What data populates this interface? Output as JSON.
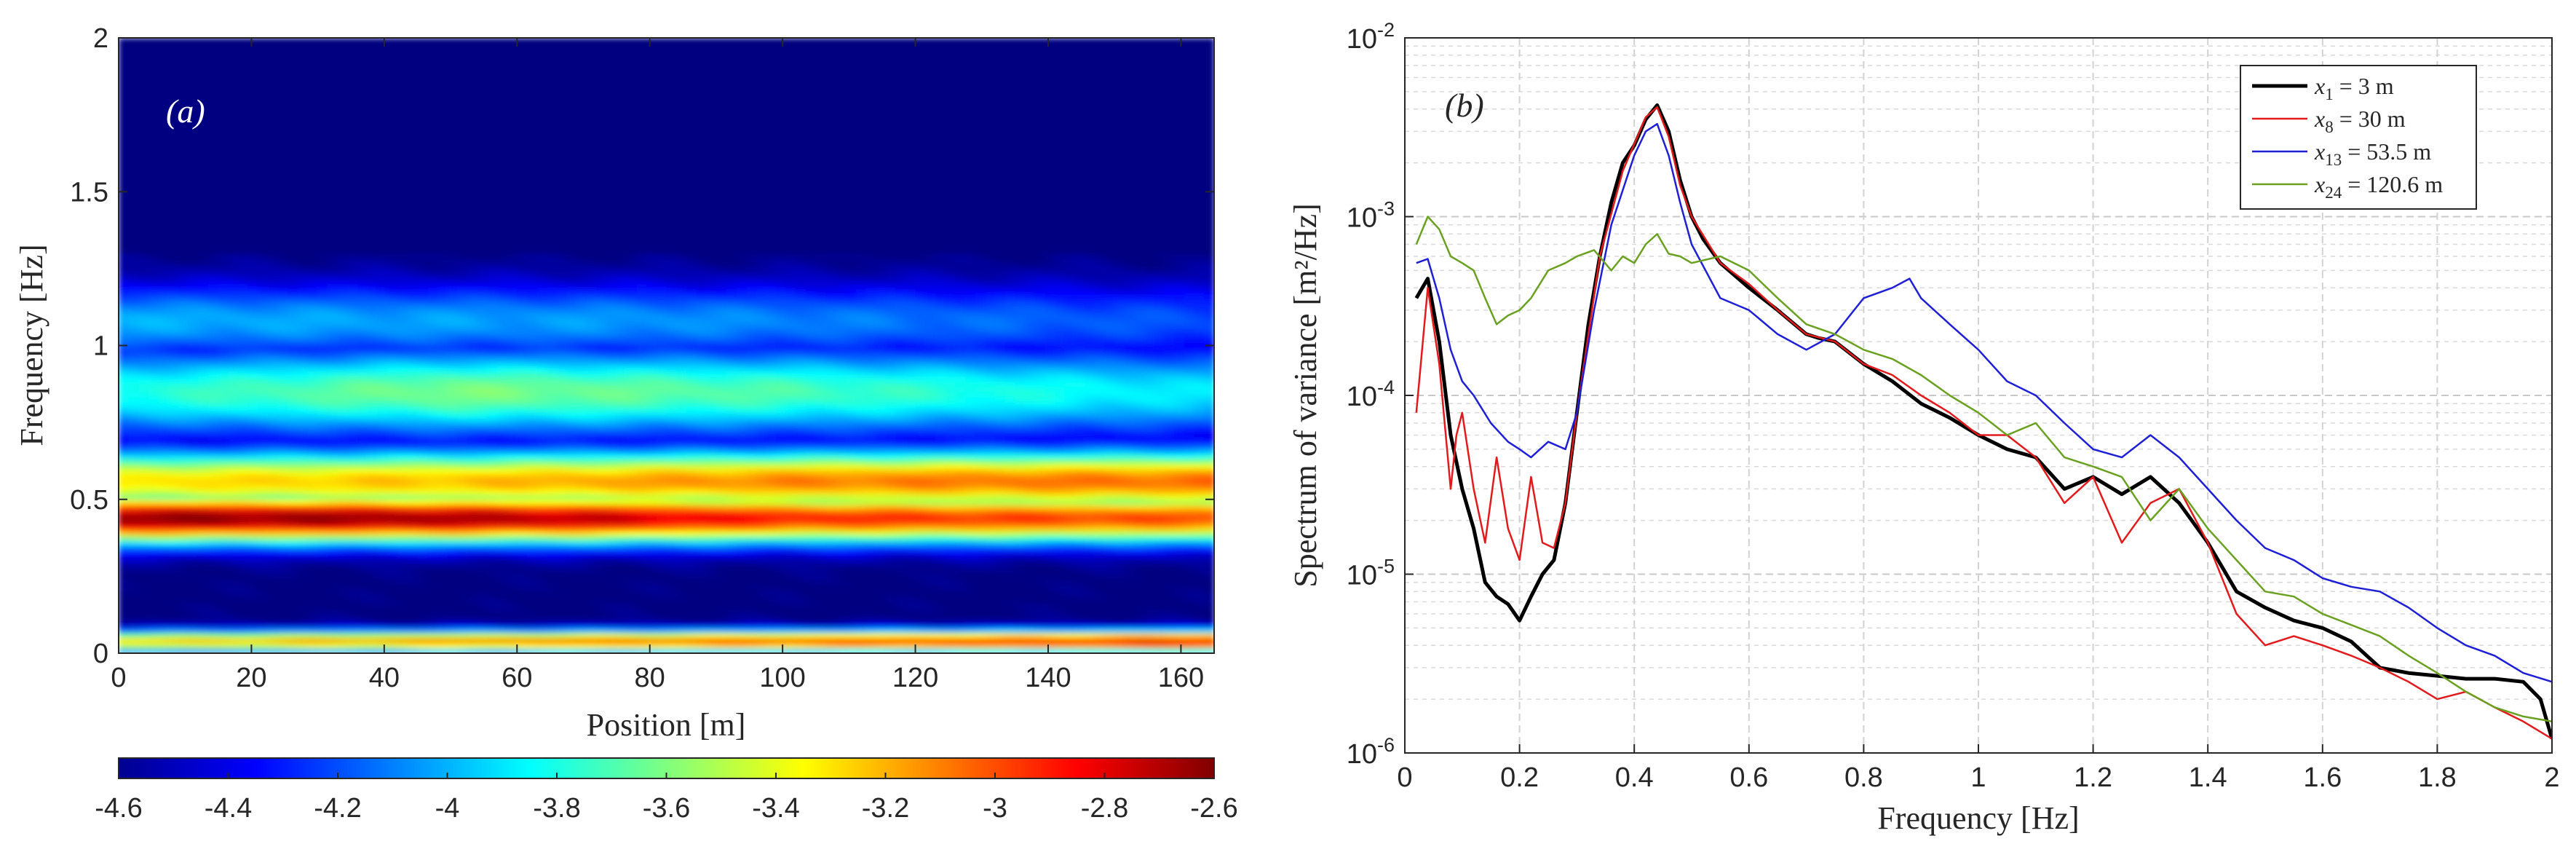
{
  "figure": {
    "panel_a_label": "(a)",
    "panel_b_label": "(b)"
  },
  "chart_data": [
    {
      "type": "heatmap",
      "panel": "(a)",
      "xlabel": "Position [m]",
      "ylabel": "Frequency [Hz]",
      "xlim": [
        0,
        165
      ],
      "ylim": [
        0,
        2
      ],
      "xticks": [
        0,
        20,
        40,
        60,
        80,
        100,
        120,
        140,
        160
      ],
      "xtick_labels": [
        "0",
        "20",
        "40",
        "60",
        "80",
        "100",
        "120",
        "140",
        "160"
      ],
      "yticks": [
        0,
        0.5,
        1,
        1.5,
        2
      ],
      "ytick_labels": [
        "0",
        "0.5",
        "1",
        "1.5",
        "2"
      ],
      "colorbar": {
        "min": -4.6,
        "max": -2.6,
        "colormap": "jet",
        "ticks": [
          -4.6,
          -4.4,
          -4.2,
          -4,
          -3.8,
          -3.6,
          -3.4,
          -3.2,
          -3,
          -2.8,
          -2.6
        ],
        "tick_labels": [
          "-4.6",
          "-4.4",
          "-4.2",
          "-4",
          "-3.8",
          "-3.6",
          "-3.4",
          "-3.2",
          "-3",
          "-2.8",
          "-2.6"
        ]
      },
      "bands": [
        {
          "freq": 0.44,
          "width": 0.08,
          "values": [
            [
              0,
              -2.62
            ],
            [
              40,
              -2.65
            ],
            [
              70,
              -2.72
            ],
            [
              100,
              -2.9
            ],
            [
              130,
              -2.95
            ],
            [
              165,
              -3.0
            ]
          ]
        },
        {
          "freq": 0.56,
          "width": 0.1,
          "values": [
            [
              0,
              -3.3
            ],
            [
              60,
              -3.2
            ],
            [
              100,
              -3.1
            ],
            [
              165,
              -3.05
            ]
          ]
        },
        {
          "freq": 0.04,
          "width": 0.035,
          "values": [
            [
              0,
              -3.3
            ],
            [
              60,
              -3.1
            ],
            [
              100,
              -3.0
            ],
            [
              140,
              -2.9
            ],
            [
              165,
              -2.8
            ]
          ]
        },
        {
          "freq": 0.85,
          "width": 0.14,
          "values": [
            [
              0,
              -3.8
            ],
            [
              50,
              -3.6
            ],
            [
              100,
              -3.7
            ],
            [
              165,
              -3.9
            ]
          ]
        },
        {
          "freq": 1.08,
          "width": 0.12,
          "values": [
            [
              0,
              -4.0
            ],
            [
              80,
              -4.05
            ],
            [
              165,
              -4.2
            ]
          ]
        }
      ]
    },
    {
      "type": "line",
      "panel": "(b)",
      "xlabel": "Frequency [Hz]",
      "ylabel": "Spectrum of variance [m²/Hz]",
      "yscale": "log",
      "xlim": [
        0,
        2
      ],
      "ylim": [
        1e-06,
        0.01
      ],
      "xticks": [
        0,
        0.2,
        0.4,
        0.6,
        0.8,
        1,
        1.2,
        1.4,
        1.6,
        1.8,
        2
      ],
      "xtick_labels": [
        "0",
        "0.2",
        "0.4",
        "0.6",
        "0.8",
        "1",
        "1.2",
        "1.4",
        "1.6",
        "1.8",
        "2"
      ],
      "yticks": [
        1e-06,
        1e-05,
        0.0001,
        0.001,
        0.01
      ],
      "ytick_labels": [
        {
          "base": "10",
          "exp": "-6"
        },
        {
          "base": "10",
          "exp": "-5"
        },
        {
          "base": "10",
          "exp": "-4"
        },
        {
          "base": "10",
          "exp": "-3"
        },
        {
          "base": "10",
          "exp": "-2"
        }
      ],
      "legend_position": "top-right",
      "series": [
        {
          "name": "x1 = 3 m",
          "legend": {
            "var": "x",
            "sub": "1",
            "rest": " = 3 m"
          },
          "color": "#000000",
          "weight": "bold",
          "x": [
            0.02,
            0.04,
            0.06,
            0.08,
            0.1,
            0.12,
            0.14,
            0.16,
            0.18,
            0.2,
            0.22,
            0.24,
            0.26,
            0.28,
            0.3,
            0.32,
            0.34,
            0.36,
            0.38,
            0.4,
            0.42,
            0.44,
            0.46,
            0.48,
            0.5,
            0.52,
            0.55,
            0.6,
            0.65,
            0.7,
            0.72,
            0.75,
            0.8,
            0.85,
            0.9,
            0.95,
            1.0,
            1.05,
            1.1,
            1.15,
            1.2,
            1.25,
            1.3,
            1.35,
            1.4,
            1.45,
            1.5,
            1.55,
            1.6,
            1.65,
            1.7,
            1.75,
            1.8,
            1.85,
            1.9,
            1.95,
            1.98,
            2.0
          ],
          "y": [
            0.00035,
            0.00045,
            0.0002,
            6e-05,
            3e-05,
            1.8e-05,
            9e-06,
            7.5e-06,
            6.8e-06,
            5.5e-06,
            7.5e-06,
            1e-05,
            1.2e-05,
            2.5e-05,
            8e-05,
            0.00025,
            0.0006,
            0.0012,
            0.002,
            0.0025,
            0.0035,
            0.0042,
            0.003,
            0.0016,
            0.001,
            0.00075,
            0.00055,
            0.0004,
            0.0003,
            0.00022,
            0.00021,
            0.0002,
            0.00015,
            0.00012,
            9e-05,
            7.5e-05,
            6e-05,
            5e-05,
            4.5e-05,
            3e-05,
            3.5e-05,
            2.8e-05,
            3.5e-05,
            2.5e-05,
            1.5e-05,
            8e-06,
            6.5e-06,
            5.5e-06,
            5e-06,
            4.2e-06,
            3e-06,
            2.8e-06,
            2.7e-06,
            2.6e-06,
            2.6e-06,
            2.5e-06,
            2e-06,
            1.2e-06
          ]
        },
        {
          "name": "x8 = 30 m",
          "legend": {
            "var": "x",
            "sub": "8",
            "rest": " = 30 m"
          },
          "color": "#e31a1c",
          "weight": "thin",
          "x": [
            0.02,
            0.04,
            0.06,
            0.08,
            0.09,
            0.1,
            0.12,
            0.14,
            0.16,
            0.18,
            0.2,
            0.22,
            0.24,
            0.26,
            0.28,
            0.3,
            0.34,
            0.38,
            0.42,
            0.44,
            0.46,
            0.48,
            0.5,
            0.55,
            0.6,
            0.65,
            0.7,
            0.75,
            0.8,
            0.85,
            0.9,
            0.95,
            1.0,
            1.05,
            1.1,
            1.15,
            1.2,
            1.25,
            1.3,
            1.35,
            1.4,
            1.45,
            1.5,
            1.55,
            1.6,
            1.65,
            1.7,
            1.75,
            1.8,
            1.85,
            1.9,
            1.95,
            2.0
          ],
          "y": [
            8e-05,
            0.0004,
            0.00015,
            3e-05,
            6e-05,
            8e-05,
            3e-05,
            1.5e-05,
            4.5e-05,
            1.8e-05,
            1.2e-05,
            3.5e-05,
            1.5e-05,
            1.4e-05,
            2.5e-05,
            8e-05,
            0.0006,
            0.0018,
            0.0036,
            0.0041,
            0.0028,
            0.0015,
            0.001,
            0.00055,
            0.00042,
            0.0003,
            0.00022,
            0.0002,
            0.00015,
            0.00013,
            0.0001,
            8e-05,
            6e-05,
            6e-05,
            4.5e-05,
            2.5e-05,
            3.5e-05,
            1.5e-05,
            2.5e-05,
            3e-05,
            1.5e-05,
            6e-06,
            4e-06,
            4.5e-06,
            4e-06,
            3.5e-06,
            3e-06,
            2.5e-06,
            2e-06,
            2.2e-06,
            1.8e-06,
            1.5e-06,
            1.2e-06
          ]
        },
        {
          "name": "x13 = 53.5 m",
          "legend": {
            "var": "x",
            "sub": "13",
            "rest": " = 53.5 m"
          },
          "color": "#1f1fd6",
          "weight": "thin",
          "x": [
            0.02,
            0.04,
            0.06,
            0.08,
            0.1,
            0.12,
            0.15,
            0.18,
            0.2,
            0.22,
            0.25,
            0.28,
            0.3,
            0.33,
            0.36,
            0.4,
            0.42,
            0.44,
            0.46,
            0.48,
            0.5,
            0.55,
            0.6,
            0.65,
            0.7,
            0.75,
            0.8,
            0.85,
            0.88,
            0.9,
            0.95,
            1.0,
            1.05,
            1.1,
            1.15,
            1.2,
            1.25,
            1.3,
            1.35,
            1.4,
            1.45,
            1.5,
            1.55,
            1.6,
            1.65,
            1.7,
            1.75,
            1.8,
            1.85,
            1.9,
            1.95,
            2.0
          ],
          "y": [
            0.00055,
            0.00058,
            0.00035,
            0.00018,
            0.00012,
            0.0001,
            7e-05,
            5.5e-05,
            5e-05,
            4.5e-05,
            5.5e-05,
            5e-05,
            8e-05,
            0.0003,
            0.0009,
            0.0022,
            0.003,
            0.0033,
            0.0022,
            0.0012,
            0.0007,
            0.00035,
            0.0003,
            0.00022,
            0.00018,
            0.00022,
            0.00035,
            0.0004,
            0.00045,
            0.00035,
            0.00025,
            0.00018,
            0.00012,
            0.0001,
            7e-05,
            5e-05,
            4.5e-05,
            6e-05,
            4.5e-05,
            3e-05,
            2e-05,
            1.4e-05,
            1.2e-05,
            9.5e-06,
            8.5e-06,
            8e-06,
            6.5e-06,
            5e-06,
            4e-06,
            3.5e-06,
            2.8e-06,
            2.5e-06
          ]
        },
        {
          "name": "x24 = 120.6 m",
          "legend": {
            "var": "x",
            "sub": "24",
            "rest": " = 120.6 m"
          },
          "color": "#6aa121",
          "weight": "thin",
          "x": [
            0.02,
            0.04,
            0.06,
            0.08,
            0.1,
            0.12,
            0.14,
            0.16,
            0.18,
            0.2,
            0.22,
            0.25,
            0.28,
            0.3,
            0.33,
            0.36,
            0.38,
            0.4,
            0.42,
            0.44,
            0.46,
            0.48,
            0.5,
            0.55,
            0.6,
            0.65,
            0.7,
            0.75,
            0.8,
            0.85,
            0.9,
            0.95,
            1.0,
            1.05,
            1.1,
            1.15,
            1.2,
            1.25,
            1.3,
            1.35,
            1.4,
            1.45,
            1.5,
            1.55,
            1.6,
            1.65,
            1.7,
            1.75,
            1.8,
            1.85,
            1.9,
            1.95,
            2.0
          ],
          "y": [
            0.0007,
            0.001,
            0.00085,
            0.0006,
            0.00055,
            0.0005,
            0.00035,
            0.00025,
            0.00028,
            0.0003,
            0.00035,
            0.0005,
            0.00055,
            0.0006,
            0.00065,
            0.0005,
            0.0006,
            0.00055,
            0.0007,
            0.0008,
            0.00062,
            0.0006,
            0.00055,
            0.0006,
            0.0005,
            0.00035,
            0.00025,
            0.00022,
            0.00018,
            0.00016,
            0.00013,
            0.0001,
            8e-05,
            6e-05,
            7e-05,
            4.5e-05,
            4e-05,
            3.5e-05,
            2e-05,
            3e-05,
            1.8e-05,
            1.2e-05,
            8e-06,
            7.5e-06,
            6e-06,
            5.2e-06,
            4.5e-06,
            3.5e-06,
            2.8e-06,
            2.2e-06,
            1.8e-06,
            1.6e-06,
            1.5e-06
          ]
        }
      ]
    }
  ]
}
